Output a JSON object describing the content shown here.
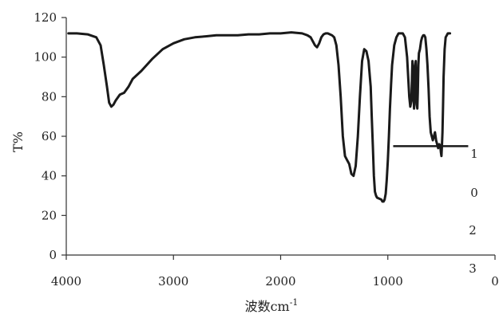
{
  "chart_data": {
    "type": "line",
    "xlabel": "波数cm",
    "xlabel_superscript": "-1",
    "ylabel": "T%",
    "x_reversed": true,
    "xlim": [
      4000,
      0
    ],
    "ylim": [
      0,
      120
    ],
    "x_ticks": [
      "4000",
      "3000",
      "2000",
      "1000",
      "0"
    ],
    "y_ticks": [
      "0",
      "20",
      "40",
      "60",
      "80",
      "100",
      "120"
    ],
    "grid": false,
    "annotations": [
      "1",
      "0",
      "2",
      "3"
    ],
    "series": [
      {
        "x": [
          3980,
          3900,
          3800,
          3720,
          3680,
          3650,
          3620,
          3600,
          3580,
          3560,
          3540,
          3500,
          3460,
          3420,
          3380,
          3300,
          3200,
          3100,
          3000,
          2900,
          2800,
          2700,
          2600,
          2500,
          2400,
          2300,
          2200,
          2100,
          2000,
          1900,
          1800,
          1750,
          1720,
          1700,
          1680,
          1660,
          1640,
          1620,
          1600,
          1580,
          1560,
          1540,
          1520,
          1500,
          1480,
          1460,
          1440,
          1420,
          1400,
          1380,
          1360,
          1340,
          1320,
          1300,
          1280,
          1260,
          1240,
          1220,
          1200,
          1180,
          1160,
          1150,
          1140,
          1130,
          1120,
          1110,
          1100,
          1080,
          1060,
          1050,
          1040,
          1030,
          1020,
          1010,
          1000,
          990,
          980,
          970,
          960,
          940,
          920,
          900,
          880,
          860,
          840,
          820,
          800,
          790,
          780,
          775,
          770,
          765,
          760,
          755,
          750,
          745,
          740,
          735,
          730,
          725,
          720,
          715,
          710,
          700,
          690,
          680,
          670,
          660,
          650,
          640,
          630,
          620,
          610,
          600,
          590,
          580,
          570,
          560,
          550,
          540,
          530,
          520,
          510,
          505,
          500,
          495,
          490,
          485,
          480,
          470,
          460,
          450,
          440,
          430,
          420
        ],
        "y": [
          112,
          112,
          111.5,
          110,
          106,
          96,
          85,
          77,
          75,
          76,
          78,
          81,
          82,
          85,
          89,
          93,
          99,
          104,
          107,
          109,
          110,
          110.5,
          111,
          111,
          111,
          111.5,
          111.5,
          112,
          112,
          112.5,
          112,
          111,
          110,
          108,
          106,
          105,
          107,
          110,
          111.5,
          112,
          112,
          111.5,
          111,
          110,
          106,
          96,
          80,
          60,
          50,
          48,
          46,
          41,
          40,
          45,
          60,
          80,
          98,
          104,
          103,
          98,
          85,
          70,
          55,
          40,
          32,
          30,
          29,
          28.5,
          28,
          27,
          27,
          28,
          31,
          38,
          48,
          60,
          74,
          86,
          96,
          106,
          110,
          112,
          112,
          112,
          110,
          100,
          80,
          75,
          78,
          90,
          98,
          95,
          80,
          74,
          80,
          95,
          98,
          90,
          76,
          74,
          82,
          96,
          102,
          104,
          108,
          110,
          111,
          111,
          110,
          104,
          96,
          84,
          70,
          62,
          60,
          58,
          60,
          62,
          58,
          56,
          54,
          56,
          55,
          52,
          50,
          55,
          62,
          75,
          90,
          104,
          110,
          111,
          112,
          112,
          112
        ]
      }
    ],
    "marker_line": {
      "y": 55,
      "x_from": 950,
      "x_to": 250
    }
  }
}
